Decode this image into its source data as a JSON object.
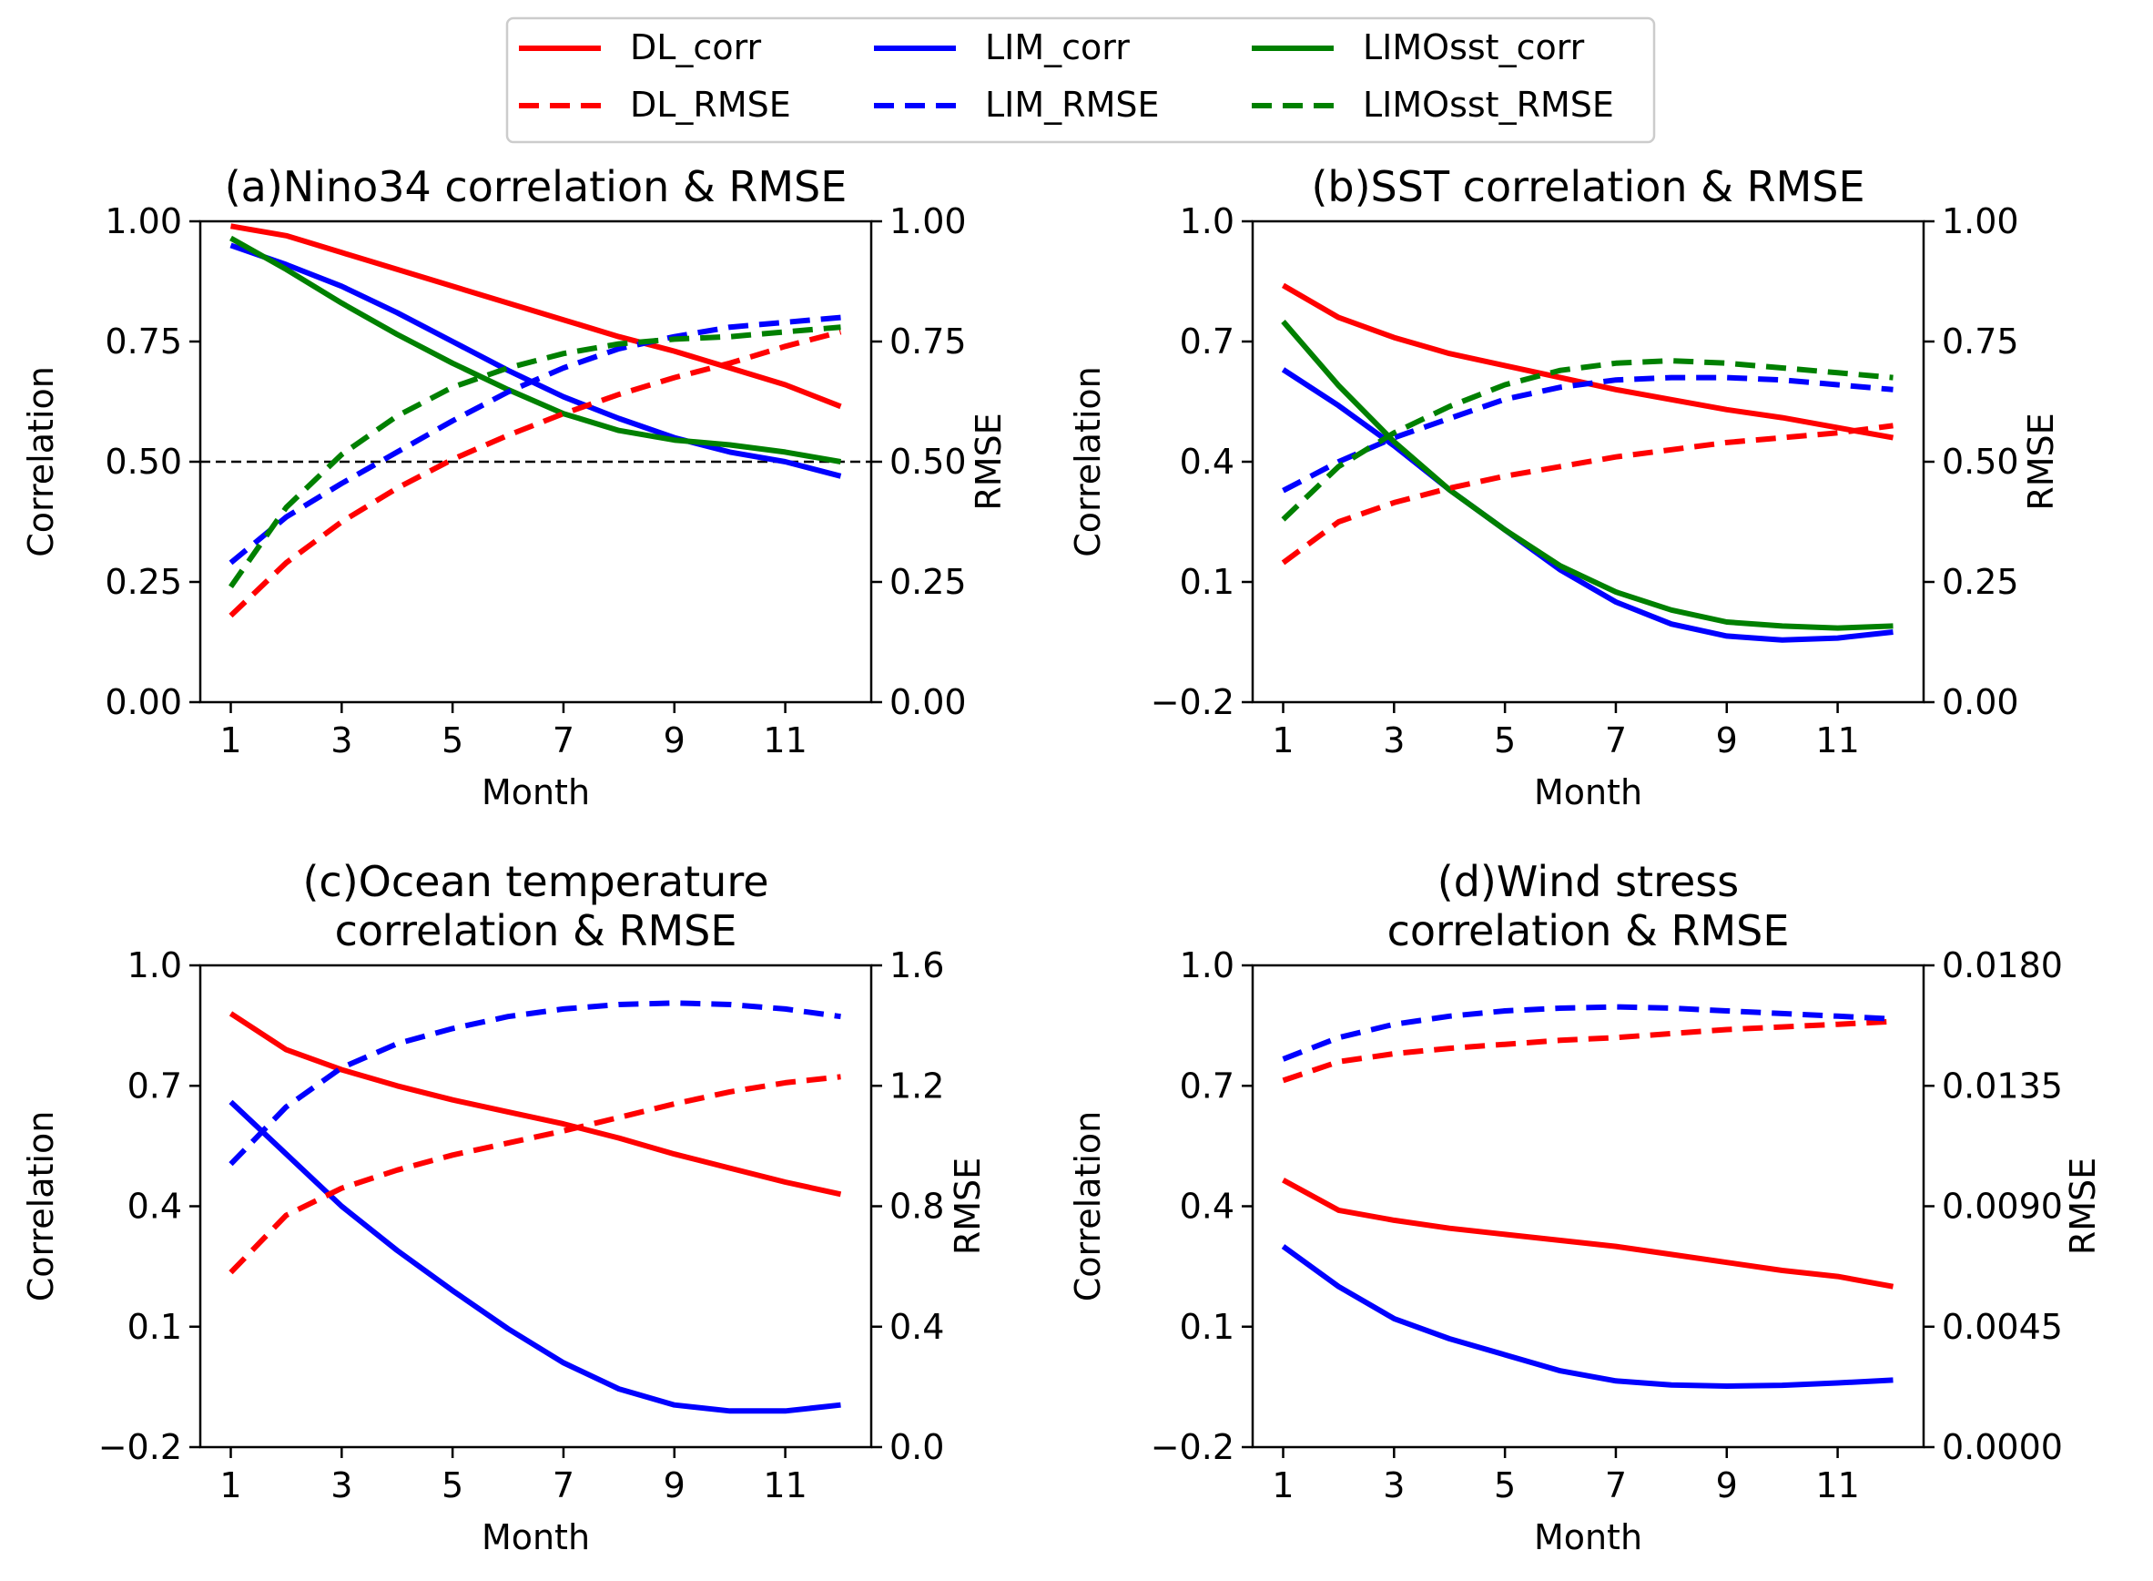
{
  "legend": {
    "entries": [
      {
        "label": "DL_corr",
        "color": "#ff0000",
        "style": "solid"
      },
      {
        "label": "DL_RMSE",
        "color": "#ff0000",
        "style": "dashed"
      },
      {
        "label": "LIM_corr",
        "color": "#0000ff",
        "style": "solid"
      },
      {
        "label": "LIM_RMSE",
        "color": "#0000ff",
        "style": "dashed"
      },
      {
        "label": "LIMOsst_corr",
        "color": "#008000",
        "style": "solid"
      },
      {
        "label": "LIMOsst_RMSE",
        "color": "#008000",
        "style": "dashed"
      }
    ]
  },
  "chart_data": [
    {
      "type": "line",
      "title": [
        "(a)Nino34 correlation & RMSE"
      ],
      "xlabel": "Month",
      "ylabel": "Correlation",
      "y2label": "RMSE",
      "x": [
        1,
        2,
        3,
        4,
        5,
        6,
        7,
        8,
        9,
        10,
        11,
        12
      ],
      "xticks": [
        1,
        3,
        5,
        7,
        9,
        11
      ],
      "xlim": [
        0.45,
        12.55
      ],
      "ylim": [
        0,
        1
      ],
      "yticks": [
        "0.00",
        "0.25",
        "0.50",
        "0.75",
        "1.00"
      ],
      "y2lim": [
        0,
        1
      ],
      "y2ticks": [
        "0.00",
        "0.25",
        "0.50",
        "0.75",
        "1.00"
      ],
      "hline": 0.5,
      "series": [
        {
          "name": "DL_corr",
          "axis": "left",
          "color": "#ff0000",
          "dashed": false,
          "values": [
            0.99,
            0.97,
            0.935,
            0.9,
            0.865,
            0.83,
            0.795,
            0.76,
            0.73,
            0.695,
            0.66,
            0.615
          ]
        },
        {
          "name": "LIM_corr",
          "axis": "left",
          "color": "#0000ff",
          "dashed": false,
          "values": [
            0.95,
            0.91,
            0.865,
            0.81,
            0.75,
            0.69,
            0.635,
            0.59,
            0.55,
            0.52,
            0.5,
            0.47
          ]
        },
        {
          "name": "LIMOsst_corr",
          "axis": "left",
          "color": "#008000",
          "dashed": false,
          "values": [
            0.965,
            0.9,
            0.83,
            0.765,
            0.705,
            0.65,
            0.6,
            0.565,
            0.545,
            0.535,
            0.52,
            0.5
          ]
        },
        {
          "name": "DL_RMSE",
          "axis": "right",
          "color": "#ff0000",
          "dashed": true,
          "values": [
            0.18,
            0.29,
            0.375,
            0.445,
            0.505,
            0.555,
            0.6,
            0.64,
            0.675,
            0.705,
            0.74,
            0.77
          ]
        },
        {
          "name": "LIM_RMSE",
          "axis": "right",
          "color": "#0000ff",
          "dashed": true,
          "values": [
            0.29,
            0.385,
            0.455,
            0.52,
            0.585,
            0.645,
            0.695,
            0.735,
            0.76,
            0.78,
            0.79,
            0.8
          ]
        },
        {
          "name": "LIMOsst_RMSE",
          "axis": "right",
          "color": "#008000",
          "dashed": true,
          "values": [
            0.24,
            0.405,
            0.515,
            0.595,
            0.655,
            0.695,
            0.725,
            0.745,
            0.755,
            0.76,
            0.77,
            0.78
          ]
        }
      ]
    },
    {
      "type": "line",
      "title": [
        "(b)SST correlation & RMSE"
      ],
      "xlabel": "Month",
      "ylabel": "Correlation",
      "y2label": "RMSE",
      "x": [
        1,
        2,
        3,
        4,
        5,
        6,
        7,
        8,
        9,
        10,
        11,
        12
      ],
      "xticks": [
        1,
        3,
        5,
        7,
        9,
        11
      ],
      "xlim": [
        0.45,
        12.55
      ],
      "ylim": [
        -0.2,
        1.0
      ],
      "yticks": [
        "−0.2",
        "0.1",
        "0.4",
        "0.7",
        "1.0"
      ],
      "y2lim": [
        0,
        1
      ],
      "y2ticks": [
        "0.00",
        "0.25",
        "0.50",
        "0.75",
        "1.00"
      ],
      "series": [
        {
          "name": "DL_corr",
          "axis": "left",
          "color": "#ff0000",
          "dashed": false,
          "values": [
            0.84,
            0.76,
            0.71,
            0.67,
            0.64,
            0.61,
            0.58,
            0.555,
            0.53,
            0.51,
            0.485,
            0.46
          ]
        },
        {
          "name": "LIM_corr",
          "axis": "left",
          "color": "#0000ff",
          "dashed": false,
          "values": [
            0.63,
            0.54,
            0.44,
            0.33,
            0.23,
            0.13,
            0.05,
            -0.005,
            -0.035,
            -0.045,
            -0.04,
            -0.025
          ]
        },
        {
          "name": "LIMOsst_corr",
          "axis": "left",
          "color": "#008000",
          "dashed": false,
          "values": [
            0.75,
            0.59,
            0.45,
            0.33,
            0.23,
            0.14,
            0.075,
            0.03,
            0.0,
            -0.01,
            -0.015,
            -0.01
          ]
        },
        {
          "name": "DL_RMSE",
          "axis": "right",
          "color": "#ff0000",
          "dashed": true,
          "values": [
            0.29,
            0.375,
            0.415,
            0.445,
            0.47,
            0.49,
            0.51,
            0.525,
            0.54,
            0.55,
            0.56,
            0.575
          ]
        },
        {
          "name": "LIM_RMSE",
          "axis": "right",
          "color": "#0000ff",
          "dashed": true,
          "values": [
            0.44,
            0.5,
            0.55,
            0.59,
            0.63,
            0.655,
            0.67,
            0.675,
            0.675,
            0.67,
            0.66,
            0.65
          ]
        },
        {
          "name": "LIMOsst_RMSE",
          "axis": "right",
          "color": "#008000",
          "dashed": true,
          "values": [
            0.38,
            0.49,
            0.56,
            0.615,
            0.66,
            0.69,
            0.705,
            0.71,
            0.705,
            0.695,
            0.685,
            0.675
          ]
        }
      ]
    },
    {
      "type": "line",
      "title": [
        "(c)Ocean temperature",
        "correlation & RMSE"
      ],
      "xlabel": "Month",
      "ylabel": "Correlation",
      "y2label": "RMSE",
      "x": [
        1,
        2,
        3,
        4,
        5,
        6,
        7,
        8,
        9,
        10,
        11,
        12
      ],
      "xticks": [
        1,
        3,
        5,
        7,
        9,
        11
      ],
      "xlim": [
        0.45,
        12.55
      ],
      "ylim": [
        -0.2,
        1.0
      ],
      "yticks": [
        "−0.2",
        "0.1",
        "0.4",
        "0.7",
        "1.0"
      ],
      "y2lim": [
        0,
        1.6
      ],
      "y2ticks": [
        "0.0",
        "0.4",
        "0.8",
        "1.2",
        "1.6"
      ],
      "series": [
        {
          "name": "DL_corr",
          "axis": "left",
          "color": "#ff0000",
          "dashed": false,
          "values": [
            0.88,
            0.79,
            0.74,
            0.7,
            0.665,
            0.635,
            0.605,
            0.57,
            0.53,
            0.495,
            0.46,
            0.43
          ]
        },
        {
          "name": "LIM_corr",
          "axis": "left",
          "color": "#0000ff",
          "dashed": false,
          "values": [
            0.66,
            0.53,
            0.4,
            0.29,
            0.19,
            0.095,
            0.01,
            -0.055,
            -0.095,
            -0.11,
            -0.11,
            -0.095
          ]
        },
        {
          "name": "DL_RMSE",
          "axis": "right",
          "color": "#ff0000",
          "dashed": true,
          "values": [
            0.58,
            0.77,
            0.86,
            0.92,
            0.97,
            1.01,
            1.05,
            1.095,
            1.14,
            1.18,
            1.21,
            1.23
          ]
        },
        {
          "name": "LIM_RMSE",
          "axis": "right",
          "color": "#0000ff",
          "dashed": true,
          "values": [
            0.94,
            1.13,
            1.26,
            1.34,
            1.39,
            1.43,
            1.455,
            1.47,
            1.475,
            1.47,
            1.455,
            1.43
          ]
        }
      ]
    },
    {
      "type": "line",
      "title": [
        "(d)Wind stress",
        "correlation & RMSE"
      ],
      "xlabel": "Month",
      "ylabel": "Correlation",
      "y2label": "RMSE",
      "x": [
        1,
        2,
        3,
        4,
        5,
        6,
        7,
        8,
        9,
        10,
        11,
        12
      ],
      "xticks": [
        1,
        3,
        5,
        7,
        9,
        11
      ],
      "xlim": [
        0.45,
        12.55
      ],
      "ylim": [
        -0.2,
        1.0
      ],
      "yticks": [
        "−0.2",
        "0.1",
        "0.4",
        "0.7",
        "1.0"
      ],
      "y2lim": [
        0,
        0.018
      ],
      "y2ticks": [
        "0.0000",
        "0.0045",
        "0.0090",
        "0.0135",
        "0.0180"
      ],
      "series": [
        {
          "name": "DL_corr",
          "axis": "left",
          "color": "#ff0000",
          "dashed": false,
          "values": [
            0.465,
            0.39,
            0.365,
            0.345,
            0.33,
            0.315,
            0.3,
            0.28,
            0.26,
            0.24,
            0.225,
            0.2
          ]
        },
        {
          "name": "LIM_corr",
          "axis": "left",
          "color": "#0000ff",
          "dashed": false,
          "values": [
            0.3,
            0.2,
            0.12,
            0.07,
            0.03,
            -0.01,
            -0.035,
            -0.045,
            -0.048,
            -0.046,
            -0.04,
            -0.033
          ]
        },
        {
          "name": "DL_RMSE",
          "axis": "right",
          "color": "#ff0000",
          "dashed": true,
          "values": [
            0.0137,
            0.0144,
            0.0147,
            0.0149,
            0.01505,
            0.0152,
            0.0153,
            0.01545,
            0.0156,
            0.0157,
            0.0158,
            0.0159
          ]
        },
        {
          "name": "LIM_RMSE",
          "axis": "right",
          "color": "#0000ff",
          "dashed": true,
          "values": [
            0.0145,
            0.0153,
            0.0158,
            0.0161,
            0.0163,
            0.0164,
            0.01645,
            0.0164,
            0.0163,
            0.0162,
            0.0161,
            0.016
          ]
        }
      ]
    }
  ]
}
